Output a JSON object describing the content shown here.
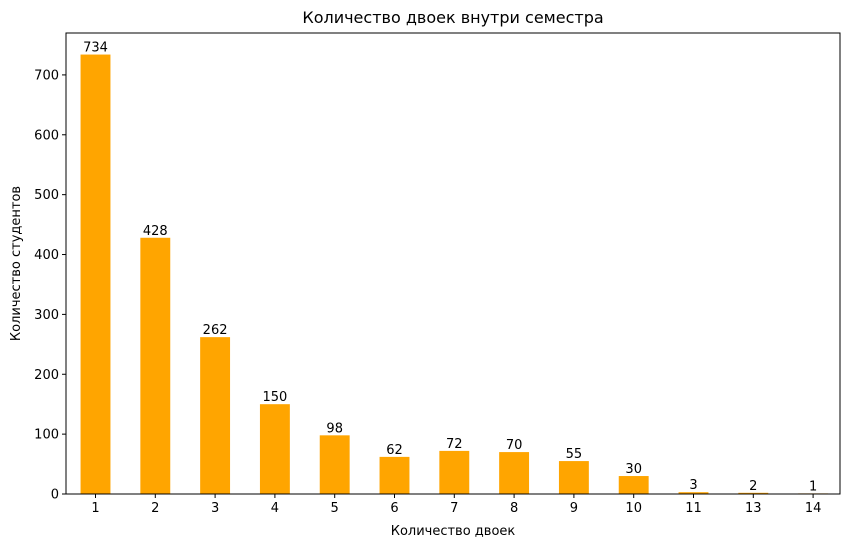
{
  "chart_data": {
    "type": "bar",
    "title": "Количество двоек внутри семестра",
    "xlabel": "Количество двоек",
    "ylabel": "Количество студентов",
    "categories": [
      "1",
      "2",
      "3",
      "4",
      "5",
      "6",
      "7",
      "8",
      "9",
      "10",
      "11",
      "13",
      "14"
    ],
    "values": [
      734,
      428,
      262,
      150,
      98,
      62,
      72,
      70,
      55,
      30,
      3,
      2,
      1
    ],
    "ylim": [
      0,
      770
    ],
    "yticks": [
      0,
      100,
      200,
      300,
      400,
      500,
      600,
      700
    ],
    "grid": false,
    "legend": "none",
    "colors": {
      "bar": "#ffa500",
      "axis": "#000000",
      "background": "#ffffff"
    }
  }
}
